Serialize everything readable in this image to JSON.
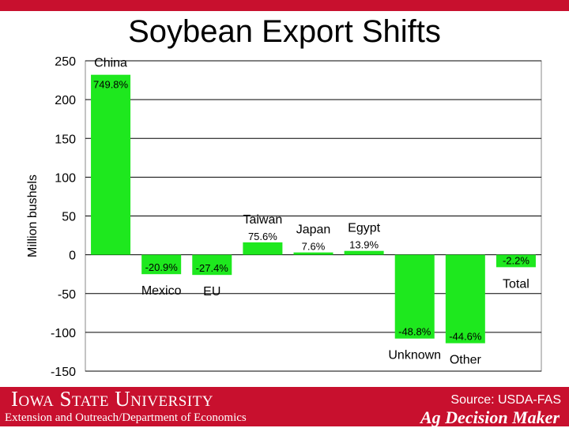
{
  "slide": {
    "title": "Soybean Export Shifts"
  },
  "footer": {
    "university": "Iowa State University",
    "department": "Extension and Outreach/Department of Economics",
    "source": "Source: USDA-FAS",
    "brand": "Ag Decision Maker"
  },
  "colors": {
    "bar": "#1ee81e",
    "plot_bg": "#ffffff",
    "grid": "#000000",
    "footer_bg": "#c8102e"
  },
  "chart_data": {
    "type": "bar",
    "title": "",
    "xlabel": "",
    "ylabel": "Million bushels",
    "ylim": [
      -150,
      250
    ],
    "yticks": [
      250,
      200,
      150,
      100,
      50,
      0,
      -50,
      -100,
      -150
    ],
    "grid": true,
    "categories": [
      "China",
      "Mexico",
      "EU",
      "Taiwan",
      "Japan",
      "Egypt",
      "Unknown",
      "Other",
      "Total"
    ],
    "values": [
      232,
      -25,
      -26,
      16,
      3,
      5,
      -108,
      -114,
      -16
    ],
    "data_labels": [
      "749.8%",
      "-20.9%",
      "-27.4%",
      "75.6%",
      "7.6%",
      "13.9%",
      "-48.8%",
      "-44.6%",
      "-2.2%"
    ]
  }
}
